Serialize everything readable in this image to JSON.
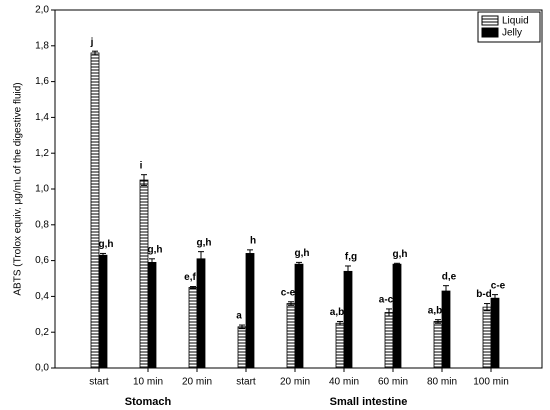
{
  "chart_data": {
    "type": "bar",
    "y_label": "ABTS (Trolox equiv. μg/mL of the digestive fluid)",
    "categories": [
      "start",
      "10 min",
      "20 min",
      "start",
      "20 min",
      "40 min",
      "60 min",
      "80 min",
      "100 min"
    ],
    "group_labels": [
      "Stomach",
      "Small intestine"
    ],
    "series": [
      {
        "name": "Liquid",
        "color": "#000000",
        "hatch": true,
        "values": [
          1.76,
          1.05,
          0.45,
          0.23,
          0.36,
          0.25,
          0.31,
          0.26,
          0.34
        ],
        "errors": [
          0.01,
          0.03,
          0.005,
          0.01,
          0.01,
          0.01,
          0.02,
          0.01,
          0.02
        ],
        "labels": [
          "j",
          "i",
          "e,f",
          "a",
          "c-e",
          "a,b",
          "a-c",
          "a,b",
          "b-d"
        ]
      },
      {
        "name": "Jelly",
        "color": "#000000",
        "hatch": false,
        "values": [
          0.63,
          0.59,
          0.61,
          0.64,
          0.58,
          0.54,
          0.58,
          0.43,
          0.39
        ],
        "errors": [
          0.01,
          0.02,
          0.04,
          0.02,
          0.01,
          0.03,
          0.005,
          0.03,
          0.02
        ],
        "labels": [
          "g,h",
          "g,h",
          "g,h",
          "h",
          "g,h",
          "f,g",
          "g,h",
          "d,e",
          "c-e"
        ]
      }
    ],
    "ylim": [
      0,
      2
    ],
    "yticks": [
      {
        "value": 0,
        "label": "0,0"
      },
      {
        "value": 0.2,
        "label": "0,2"
      },
      {
        "value": 0.4,
        "label": "0,4"
      },
      {
        "value": 0.6,
        "label": "0,6"
      },
      {
        "value": 0.8,
        "label": "0,8"
      },
      {
        "value": 1,
        "label": "1,0"
      },
      {
        "value": 1.2,
        "label": "1,2"
      },
      {
        "value": 1.4,
        "label": "1,4"
      },
      {
        "value": 1.6,
        "label": "1,6"
      },
      {
        "value": 1.8,
        "label": "1,8"
      },
      {
        "value": 2,
        "label": "2,0"
      }
    ],
    "grid": false,
    "legend": "upper right"
  }
}
